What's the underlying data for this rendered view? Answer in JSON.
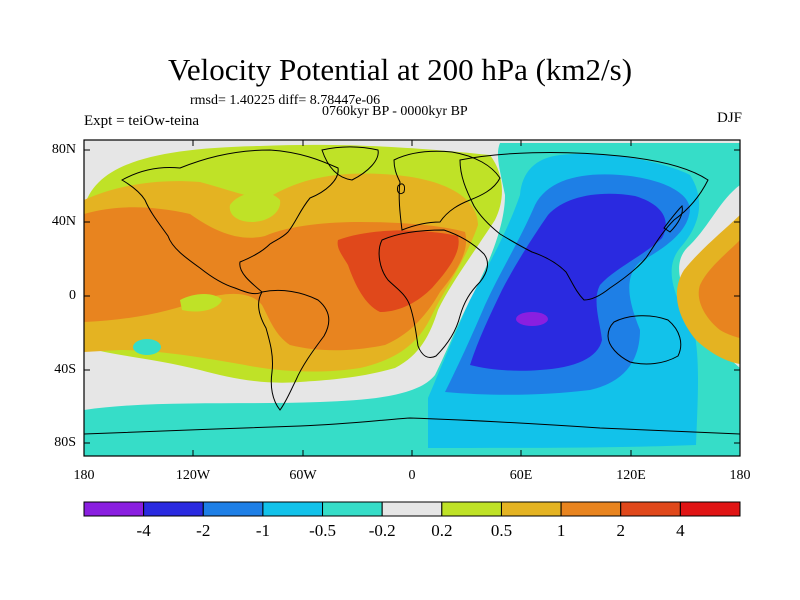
{
  "title": "Velocity Potential at 200 hPa (km2/s)",
  "stats": "rmsd= 1.40225 diff= 8.78447e-06",
  "period": "0760kyr BP - 0000kyr BP",
  "experiment": "Expt = teiOw-teina",
  "season": "DJF",
  "latitude_labels": [
    "80N",
    "40N",
    "0",
    "40S",
    "80S"
  ],
  "longitude_labels": [
    "180",
    "120W",
    "60W",
    "0",
    "60E",
    "120E",
    "180"
  ],
  "colorbar": {
    "labels": [
      "-4",
      "-2",
      "-1",
      "-0.5",
      "-0.2",
      "0.2",
      "0.5",
      "1",
      "2",
      "4"
    ],
    "colors": [
      "#8a1fe0",
      "#2a2ae0",
      "#1e7fe6",
      "#12c2ea",
      "#36ddc8",
      "#e6e6e6",
      "#bfe227",
      "#e4b322",
      "#e8841f",
      "#e0481b",
      "#e01414"
    ]
  },
  "map_colors": {
    "neutral": "#e6e6e6",
    "weak_positive": "#bfe227",
    "positive": "#e4b322",
    "moderate_positive": "#e8841f",
    "strong_positive": "#e0481b",
    "weak_negative": "#36ddc8",
    "negative": "#12c2ea",
    "moderate_negative": "#1e7fe6",
    "strong_negative": "#2a2ae0",
    "extreme_negative": "#8a1fe0"
  }
}
